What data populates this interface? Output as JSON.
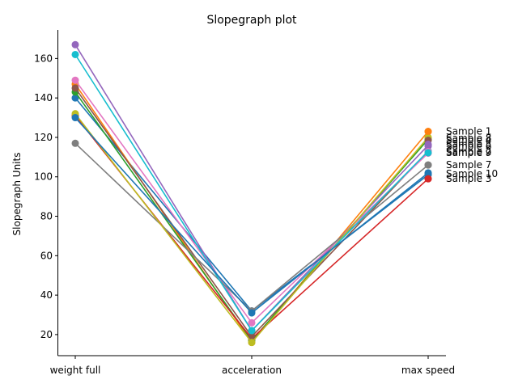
{
  "chart_data": {
    "type": "line",
    "title": "Slopegraph plot",
    "xlabel": "",
    "ylabel": "Slopegraph Units",
    "categories": [
      "weight full",
      "acceleration",
      "max speed"
    ],
    "ylim": [
      9.3,
      174.5
    ],
    "yticks": [
      20,
      40,
      60,
      80,
      100,
      120,
      140,
      160
    ],
    "grid": false,
    "legend": "right, labels at series end",
    "series": [
      {
        "name": "Sample 1",
        "color": "#1f77b4",
        "values": [
          140,
          32,
          101
        ]
      },
      {
        "name": "Sample 2",
        "color": "#ff7f0e",
        "values": [
          147,
          16,
          123
        ]
      },
      {
        "name": "Sample 3",
        "color": "#2ca02c",
        "values": [
          143,
          17,
          119
        ]
      },
      {
        "name": "Sample 4",
        "color": "#d62728",
        "values": [
          131,
          18,
          99
        ]
      },
      {
        "name": "Sample 5",
        "color": "#9467bd",
        "values": [
          167,
          22,
          116
        ]
      },
      {
        "name": "Sample 6",
        "color": "#8c564b",
        "values": [
          145,
          19,
          113
        ]
      },
      {
        "name": "Sample 7",
        "color": "#e377c2",
        "values": [
          149,
          26,
          112
        ]
      },
      {
        "name": "Sample 8",
        "color": "#7f7f7f",
        "values": [
          117,
          32,
          106
        ]
      },
      {
        "name": "Sample 9",
        "color": "#bcbd22",
        "values": [
          132,
          16,
          120
        ]
      },
      {
        "name": "Sample 10",
        "color": "#17becf",
        "values": [
          162,
          22,
          113
        ]
      },
      {
        "name": "Sample 10",
        "color": "#1f77b4",
        "values": [
          130,
          31,
          102
        ],
        "label_y": 101.5
      }
    ],
    "legend_order": [
      {
        "label": "Sample 1",
        "y": 123
      },
      {
        "label": "Sample 8",
        "y": 119.5
      },
      {
        "label": "Sample 4",
        "y": 118.5
      },
      {
        "label": "Sample 5",
        "y": 116.5
      },
      {
        "label": "Sample 6",
        "y": 115.5
      },
      {
        "label": "Sample 2",
        "y": 112.8
      },
      {
        "label": "Sample 9",
        "y": 112.2
      },
      {
        "label": "Sample 7",
        "y": 106
      },
      {
        "label": "Sample 10",
        "y": 101.5
      },
      {
        "label": "Sample 3",
        "y": 99
      }
    ]
  }
}
